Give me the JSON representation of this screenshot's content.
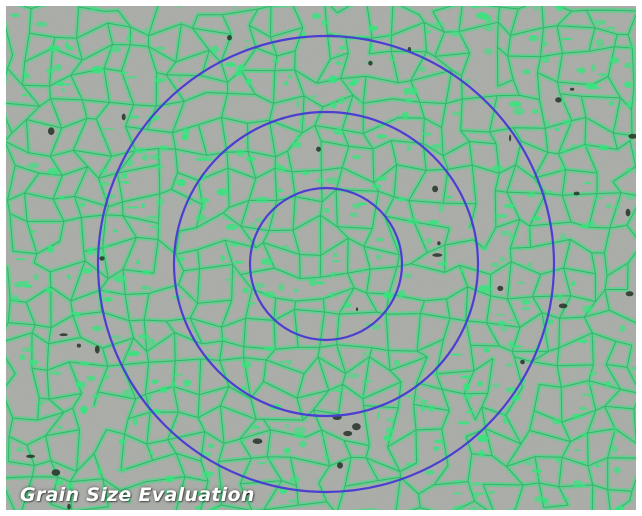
{
  "image": {
    "caption": "Grain Size Evaluation",
    "colors": {
      "background": "#a9aca7",
      "grain_boundary": "#2ee87a",
      "grain_boundary_dark": "#17a858",
      "pore": "#1d2a1f",
      "measurement_circle": "#4a3fd0"
    },
    "measurement_circles": [
      {
        "name": "inner-circle",
        "diameter_ratio": 1
      },
      {
        "name": "middle-circle",
        "diameter_ratio": 2
      },
      {
        "name": "outer-circle",
        "diameter_ratio": 3
      }
    ]
  }
}
